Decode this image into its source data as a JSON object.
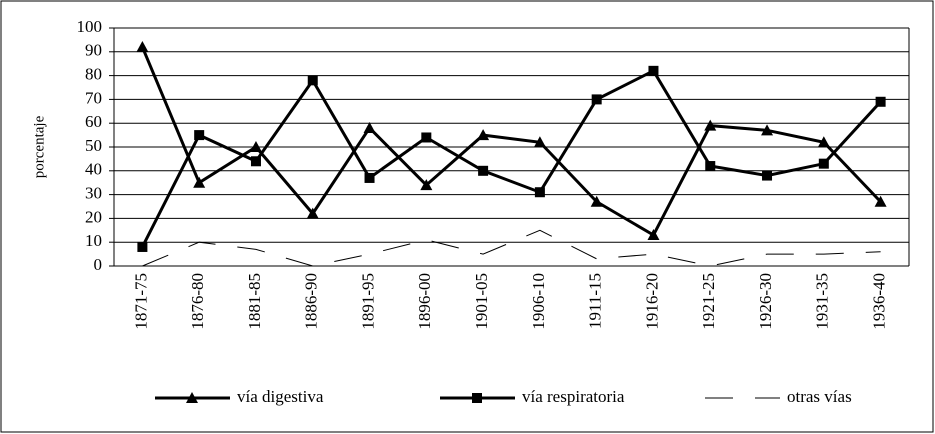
{
  "chart_data": {
    "type": "line",
    "y_label": "porcentaje",
    "categories": [
      "1871-75",
      "1876-80",
      "1881-85",
      "1886-90",
      "1891-95",
      "1896-00",
      "1901-05",
      "1906-10",
      "1911-15",
      "1916-20",
      "1921-25",
      "1926-30",
      "1931-35",
      "1936-40"
    ],
    "series": [
      {
        "name": "vía digestiva",
        "color": "#000000",
        "marker": "triangle",
        "dash": false,
        "values": [
          92,
          35,
          50,
          22,
          58,
          34,
          55,
          52,
          27,
          13,
          59,
          57,
          52,
          27
        ]
      },
      {
        "name": "vía respiratoria",
        "color": "#000000",
        "marker": "square",
        "dash": false,
        "values": [
          8,
          55,
          44,
          78,
          37,
          54,
          40,
          31,
          70,
          82,
          42,
          38,
          43,
          69
        ]
      },
      {
        "name": "otras vías",
        "color": "#000000",
        "marker": null,
        "dash": true,
        "values": [
          0,
          10,
          7,
          0,
          5,
          11,
          5,
          15,
          3,
          5,
          0,
          5,
          5,
          6
        ]
      }
    ],
    "ylim": [
      0,
      100
    ],
    "yticks": [
      0,
      10,
      20,
      30,
      40,
      50,
      60,
      70,
      80,
      90,
      100
    ],
    "grid": true,
    "legend": "bottom"
  }
}
